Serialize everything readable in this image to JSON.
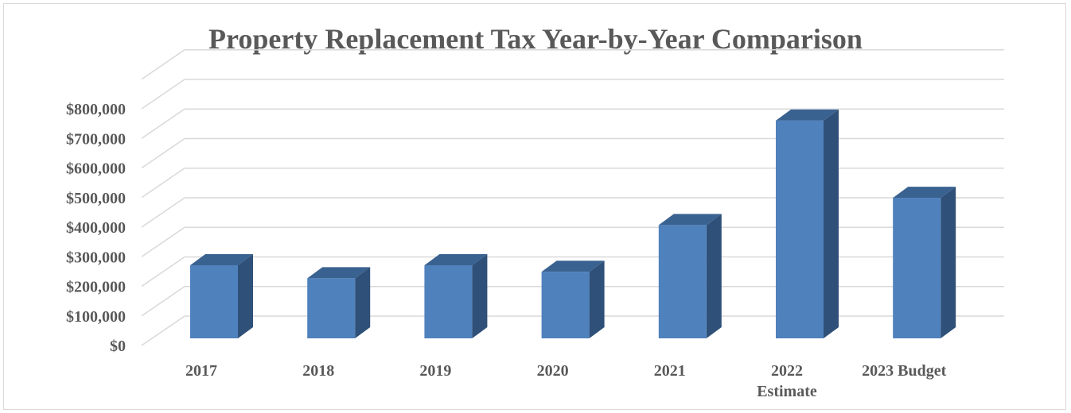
{
  "chart_data": {
    "type": "bar",
    "title": "Property Replacement Tax Year-by-Year Comparison",
    "xlabel": "",
    "ylabel": "",
    "categories": [
      "2017",
      "2018",
      "2019",
      "2020",
      "2021",
      "2022 Estimate",
      "2023 Budget"
    ],
    "category_lines": [
      [
        "2017"
      ],
      [
        "2018"
      ],
      [
        "2019"
      ],
      [
        "2020"
      ],
      [
        "2021"
      ],
      [
        "2022",
        "Estimate"
      ],
      [
        "2023 Budget"
      ]
    ],
    "values": [
      247000,
      203000,
      247000,
      225000,
      383000,
      736000,
      475000
    ],
    "ylim": [
      0,
      800000
    ],
    "ytick_values": [
      0,
      100000,
      200000,
      300000,
      400000,
      500000,
      600000,
      700000,
      800000
    ],
    "yticks": [
      "$0",
      "$100,000",
      "$200,000",
      "$300,000",
      "$400,000",
      "$500,000",
      "$600,000",
      "$700,000",
      "$800,000"
    ],
    "grid": true,
    "style": "3d-column",
    "colors": {
      "bar_front": "#4f81bd",
      "bar_side": "#2f5078",
      "bar_top": "#3a6291",
      "grid": "#d9d9d9",
      "text": "#595959"
    }
  }
}
